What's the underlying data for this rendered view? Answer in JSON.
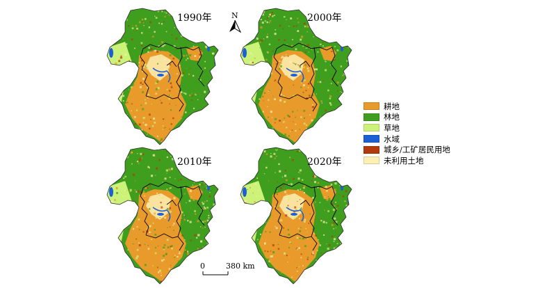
{
  "maps": [
    {
      "year_label": "1990年"
    },
    {
      "year_label": "2000年"
    },
    {
      "year_label": "2010年"
    },
    {
      "year_label": "2020年"
    }
  ],
  "legend": [
    {
      "label": "耕地",
      "color": "#e89b2b"
    },
    {
      "label": "林地",
      "color": "#3f9e1e"
    },
    {
      "label": "草地",
      "color": "#cdf27a"
    },
    {
      "label": "水域",
      "color": "#1a5fd6"
    },
    {
      "label": "城乡/工矿居民用地",
      "color": "#b33a0a"
    },
    {
      "label": "未利用土地",
      "color": "#fdf0b4"
    }
  ],
  "north_arrow": {
    "label": "N"
  },
  "scale_bar": {
    "start_label": "0",
    "end_label": "380 km"
  }
}
